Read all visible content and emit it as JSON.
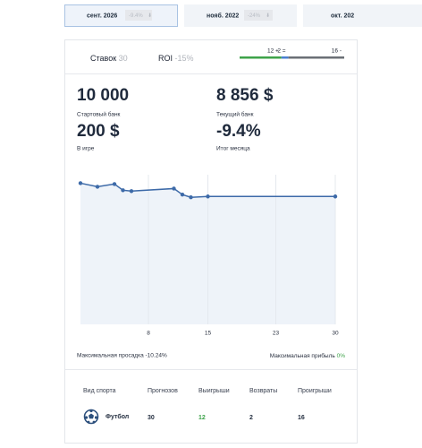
{
  "tabs": [
    {
      "month": "сент. 2026",
      "roi": "-9.4%"
    },
    {
      "month": "нояб. 2022",
      "roi": "-24%"
    },
    {
      "month": "окт. 202"
    }
  ],
  "summary": {
    "bets_label": "Ставок",
    "bets": "30",
    "roi_label": "ROI",
    "roi": "-15%"
  },
  "progress": [
    {
      "value": 12,
      "label": "12 +",
      "color": "#3ea34a"
    },
    {
      "value": 2,
      "label": "2 =",
      "color": "#4a7fd0"
    },
    {
      "value": 16,
      "label": "16 -",
      "color": "#6b6f76"
    }
  ],
  "stats": [
    {
      "value": "10 000",
      "label": "Стартовый банк"
    },
    {
      "value": "8 856 $",
      "label": "Текущий банк"
    },
    {
      "value": "200 $",
      "label": "В игре"
    },
    {
      "value": "-9.4%",
      "label": "Итог месяца"
    }
  ],
  "chart": {
    "type": "line",
    "x": [
      0,
      2,
      4,
      5,
      6,
      11,
      12,
      13,
      15,
      30
    ],
    "values": [
      0,
      -2.5,
      -0.6,
      -5,
      -5.6,
      -3.8,
      -8.1,
      -10,
      -9.4,
      -9.4
    ],
    "xlim": [
      0,
      30
    ],
    "xticks": [
      8,
      15,
      23,
      30
    ],
    "ylim": [
      -100,
      6
    ],
    "color": "#3d6aa8",
    "fill": "#eef3f9",
    "grid": true
  },
  "footer": {
    "drawdown": "Максимальная просадка -10.24%",
    "profit_label": "Максимальная прибыль",
    "profit": "0%"
  },
  "table": {
    "header": [
      "Вид спорта",
      "Прогнозов",
      "Выигрыши",
      "Возвраты",
      "Проигрыши"
    ],
    "rows": [
      [
        "Футбол",
        "30",
        "12",
        "2",
        "16"
      ]
    ]
  }
}
